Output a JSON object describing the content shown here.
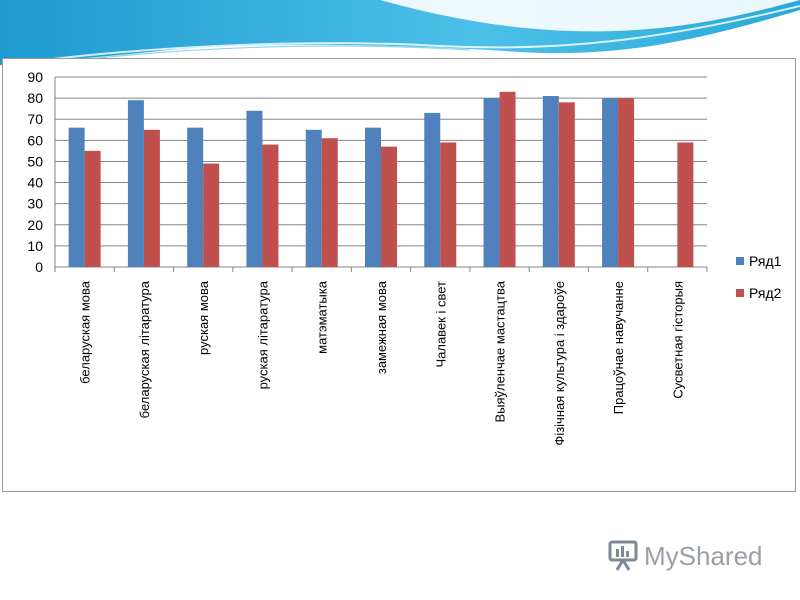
{
  "chart_data": {
    "type": "bar",
    "categories": [
      "беларуская мова",
      "беларуская літаратура",
      "руская мова",
      "руская літаратура",
      "матэматыка",
      "замежная мова",
      "Чалавек і свет",
      "Выяўленчае мастацтва",
      "Фізічная культура і здароўе",
      "Працоўнае навучанне",
      "Сусветная гісторыя"
    ],
    "series": [
      {
        "name": "Ряд1",
        "color": "#4f81bd",
        "values": [
          66,
          79,
          66,
          74,
          65,
          66,
          73,
          80,
          81,
          80,
          null
        ]
      },
      {
        "name": "Ряд2",
        "color": "#c0504d",
        "values": [
          55,
          65,
          49,
          58,
          61,
          57,
          59,
          83,
          78,
          80,
          59
        ]
      }
    ],
    "ylim": [
      0,
      90
    ],
    "yticks": [
      "0",
      "10",
      "20",
      "30",
      "40",
      "50",
      "60",
      "70",
      "80",
      "90"
    ],
    "grid": true,
    "legend_position": "right"
  },
  "logo": {
    "text": "MyShared"
  },
  "colors": {
    "banner": "#2aa9d8",
    "grid": "#868686"
  }
}
